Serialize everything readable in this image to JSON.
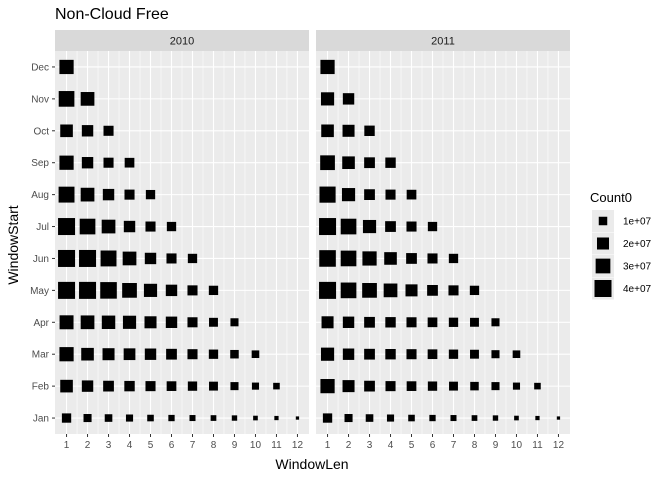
{
  "chart_data": {
    "type": "scatter",
    "title": "Non-Cloud Free",
    "xlabel": "WindowLen",
    "ylabel": "WindowStart",
    "x_ticks": [
      "1",
      "2",
      "3",
      "4",
      "5",
      "6",
      "7",
      "8",
      "9",
      "10",
      "11",
      "12"
    ],
    "y_categories": [
      "Jan",
      "Feb",
      "Mar",
      "Apr",
      "May",
      "Jun",
      "Jul",
      "Aug",
      "Sep",
      "Oct",
      "Nov",
      "Dec"
    ],
    "xlim": [
      1,
      12
    ],
    "grid": true,
    "marker": "square",
    "size_variable": "Count0",
    "legend": {
      "title": "Count0",
      "placement": "right",
      "entries": [
        {
          "label": "1e+07",
          "value": 10000000
        },
        {
          "label": "2e+07",
          "value": 20000000
        },
        {
          "label": "3e+07",
          "value": 30000000
        },
        {
          "label": "4e+07",
          "value": 40000000
        }
      ]
    },
    "facets": [
      {
        "label": "2010",
        "rows": [
          {
            "start": "Jan",
            "counts": [
              12000000,
              9000000,
              8000000,
              7000000,
              6000000,
              5500000,
              5000000,
              4500000,
              4000000,
              3000000,
              2500000,
              1500000
            ]
          },
          {
            "start": "Feb",
            "counts": [
              22000000,
              18000000,
              16000000,
              15000000,
              14000000,
              13000000,
              12000000,
              11000000,
              9000000,
              7000000,
              6000000
            ]
          },
          {
            "start": "Mar",
            "counts": [
              28000000,
              22000000,
              20000000,
              19000000,
              18000000,
              16000000,
              14000000,
              12000000,
              10000000,
              8000000
            ]
          },
          {
            "start": "Apr",
            "counts": [
              27000000,
              26000000,
              25000000,
              24000000,
              20000000,
              18000000,
              14000000,
              11000000,
              9000000
            ]
          },
          {
            "start": "May",
            "counts": [
              40000000,
              40000000,
              38000000,
              30000000,
              24000000,
              18000000,
              14000000,
              12000000
            ]
          },
          {
            "start": "Jun",
            "counts": [
              40000000,
              40000000,
              35000000,
              26000000,
              18000000,
              14000000,
              12000000
            ]
          },
          {
            "start": "Jul",
            "counts": [
              40000000,
              34000000,
              26000000,
              18000000,
              14000000,
              12000000
            ]
          },
          {
            "start": "Aug",
            "counts": [
              35000000,
              26000000,
              18000000,
              14000000,
              12000000
            ]
          },
          {
            "start": "Sep",
            "counts": [
              28000000,
              18000000,
              14000000,
              13000000
            ]
          },
          {
            "start": "Oct",
            "counts": [
              22000000,
              18000000,
              14000000
            ]
          },
          {
            "start": "Nov",
            "counts": [
              34000000,
              26000000
            ]
          },
          {
            "start": "Dec",
            "counts": [
              28000000
            ]
          }
        ]
      },
      {
        "label": "2011",
        "rows": [
          {
            "start": "Jan",
            "counts": [
              12000000,
              9000000,
              8000000,
              7000000,
              6000000,
              5500000,
              5000000,
              4500000,
              4000000,
              3000000,
              2500000,
              1500000
            ]
          },
          {
            "start": "Feb",
            "counts": [
              28000000,
              20000000,
              16000000,
              14000000,
              13000000,
              12000000,
              11000000,
              10000000,
              9000000,
              7000000,
              6000000
            ]
          },
          {
            "start": "Mar",
            "counts": [
              24000000,
              18000000,
              16000000,
              15000000,
              14000000,
              13000000,
              12000000,
              11000000,
              9000000,
              8000000
            ]
          },
          {
            "start": "Apr",
            "counts": [
              20000000,
              18000000,
              16000000,
              15000000,
              14000000,
              13000000,
              12000000,
              11000000,
              9000000
            ]
          },
          {
            "start": "May",
            "counts": [
              40000000,
              34000000,
              30000000,
              26000000,
              20000000,
              16000000,
              14000000,
              12000000
            ]
          },
          {
            "start": "Jun",
            "counts": [
              38000000,
              34000000,
              28000000,
              22000000,
              16000000,
              14000000,
              12000000
            ]
          },
          {
            "start": "Jul",
            "counts": [
              40000000,
              34000000,
              24000000,
              16000000,
              14000000,
              12000000
            ]
          },
          {
            "start": "Aug",
            "counts": [
              36000000,
              24000000,
              16000000,
              14000000,
              13000000
            ]
          },
          {
            "start": "Sep",
            "counts": [
              30000000,
              22000000,
              16000000,
              15000000
            ]
          },
          {
            "start": "Oct",
            "counts": [
              22000000,
              20000000,
              15000000
            ]
          },
          {
            "start": "Nov",
            "counts": [
              24000000,
              18000000
            ]
          },
          {
            "start": "Dec",
            "counts": [
              28000000
            ]
          }
        ]
      }
    ]
  },
  "colors": {
    "panel_background": "#ebebeb",
    "strip_background": "#d9d9d9",
    "gridline": "#ffffff",
    "marker": "#000000",
    "tick_text": "#4d4d4d"
  }
}
